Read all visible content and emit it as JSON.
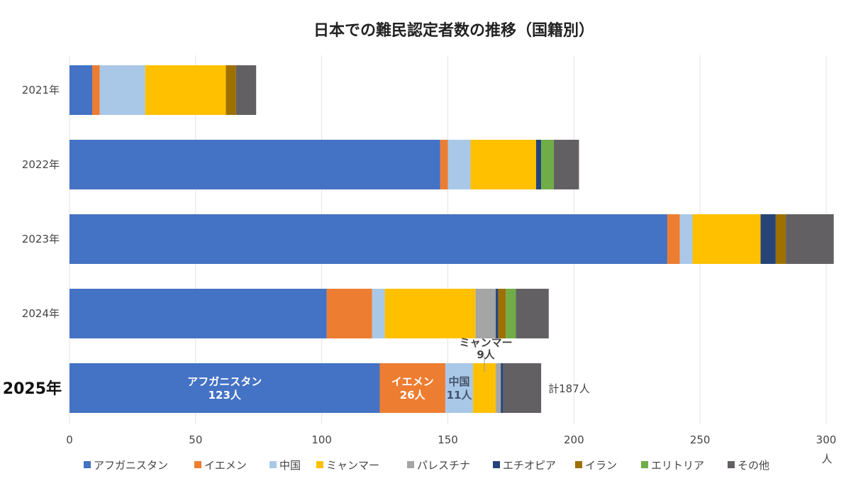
{
  "chart_data": {
    "type": "bar",
    "orientation": "horizontal",
    "stacked": true,
    "title": "日本での難民認定者数の推移（国籍別）",
    "categories": [
      "2021年",
      "2022年",
      "2023年",
      "2024年",
      "2025年"
    ],
    "highlighted_category": "2025年",
    "xlabel": "人",
    "xlim": [
      0,
      300
    ],
    "xticks": [
      0,
      50,
      100,
      150,
      200,
      250,
      300
    ],
    "grid": true,
    "legend_position": "bottom",
    "series": [
      {
        "name": "アフガニスタン",
        "color": "#4472C4",
        "values": [
          9,
          147,
          237,
          102,
          123
        ]
      },
      {
        "name": "イエメン",
        "color": "#ED7D31",
        "values": [
          3,
          3,
          5,
          18,
          26
        ]
      },
      {
        "name": "中国",
        "color": "#A9C8E8",
        "values": [
          18,
          9,
          5,
          5,
          11
        ]
      },
      {
        "name": "ミャンマー",
        "color": "#FFC000",
        "values": [
          32,
          26,
          27,
          36,
          9
        ]
      },
      {
        "name": "パレスチナ",
        "color": "#A5A5A5",
        "values": [
          0,
          0,
          0,
          8,
          2
        ]
      },
      {
        "name": "エチオピア",
        "color": "#264478",
        "values": [
          0,
          2,
          6,
          1,
          1
        ]
      },
      {
        "name": "イラン",
        "color": "#9E7000",
        "values": [
          4,
          0,
          4,
          3,
          0
        ]
      },
      {
        "name": "エリトリア",
        "color": "#70AD47",
        "values": [
          0,
          5,
          0,
          4,
          0
        ]
      },
      {
        "name": "その他",
        "color": "#636063",
        "values": [
          8,
          10,
          19,
          13,
          15
        ]
      }
    ],
    "annotations": {
      "afghanistan_2025": [
        "アフガニスタン",
        "123人"
      ],
      "yemen_2025": [
        "イエメン",
        "26人"
      ],
      "china_2025": [
        "中国",
        "11人"
      ],
      "myanmar_2025": [
        "ミャンマー",
        "9人"
      ],
      "total_2025": "計187人"
    }
  }
}
